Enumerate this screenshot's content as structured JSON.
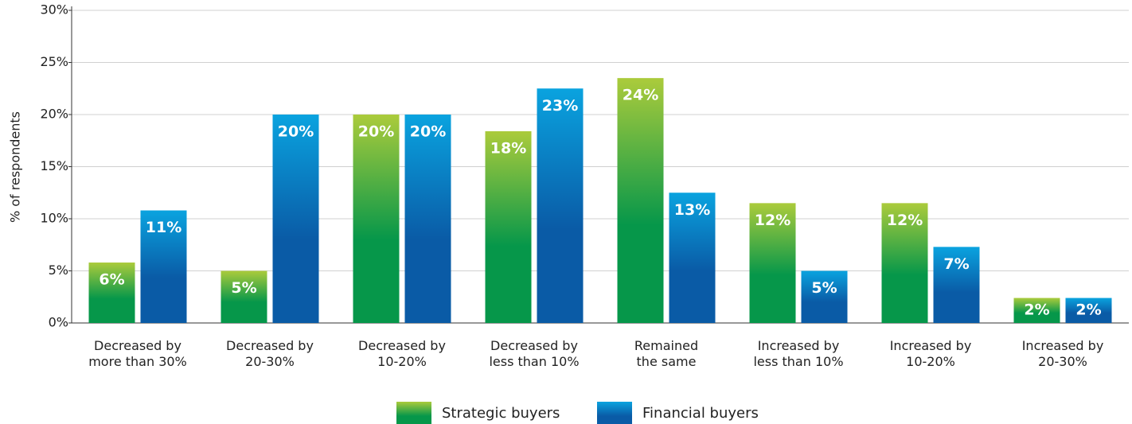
{
  "chart_data": {
    "type": "bar",
    "y_label": "% of respondents",
    "categories": [
      "Decreased by\nmore than 30%",
      "Decreased by\n20-30%",
      "Decreased by\n10-20%",
      "Decreased by\nless than 10%",
      "Remained\nthe same",
      "Increased by\nless than 10%",
      "Increased by\n10-20%",
      "Increased by\n20-30%"
    ],
    "series": [
      {
        "name": "Strategic buyers",
        "color": [
          "#abcb3b",
          "#06974a"
        ],
        "values": [
          5.8,
          5,
          20,
          18.4,
          23.5,
          11.5,
          11.5,
          2.4
        ],
        "value_labels": [
          "6%",
          "5%",
          "20%",
          "18%",
          "24%",
          "12%",
          "12%",
          "2%"
        ]
      },
      {
        "name": "Financial buyers",
        "color": [
          "#0aa3df",
          "#0a5ba6"
        ],
        "values": [
          10.8,
          20,
          20,
          22.5,
          12.5,
          5,
          7.3,
          2.4
        ],
        "value_labels": [
          "11%",
          "20%",
          "20%",
          "23%",
          "13%",
          "5%",
          "7%",
          "2%"
        ]
      }
    ],
    "ylim": [
      0,
      30
    ],
    "yticks": [
      {
        "value": 0,
        "label": "0%"
      },
      {
        "value": 5,
        "label": "5%"
      },
      {
        "value": 10,
        "label": "10%"
      },
      {
        "value": 15,
        "label": "15%"
      },
      {
        "value": 20,
        "label": "20%"
      },
      {
        "value": 25,
        "label": "25%"
      },
      {
        "value": 30,
        "label": "30%"
      }
    ],
    "grid": true,
    "legend": "bottom"
  }
}
